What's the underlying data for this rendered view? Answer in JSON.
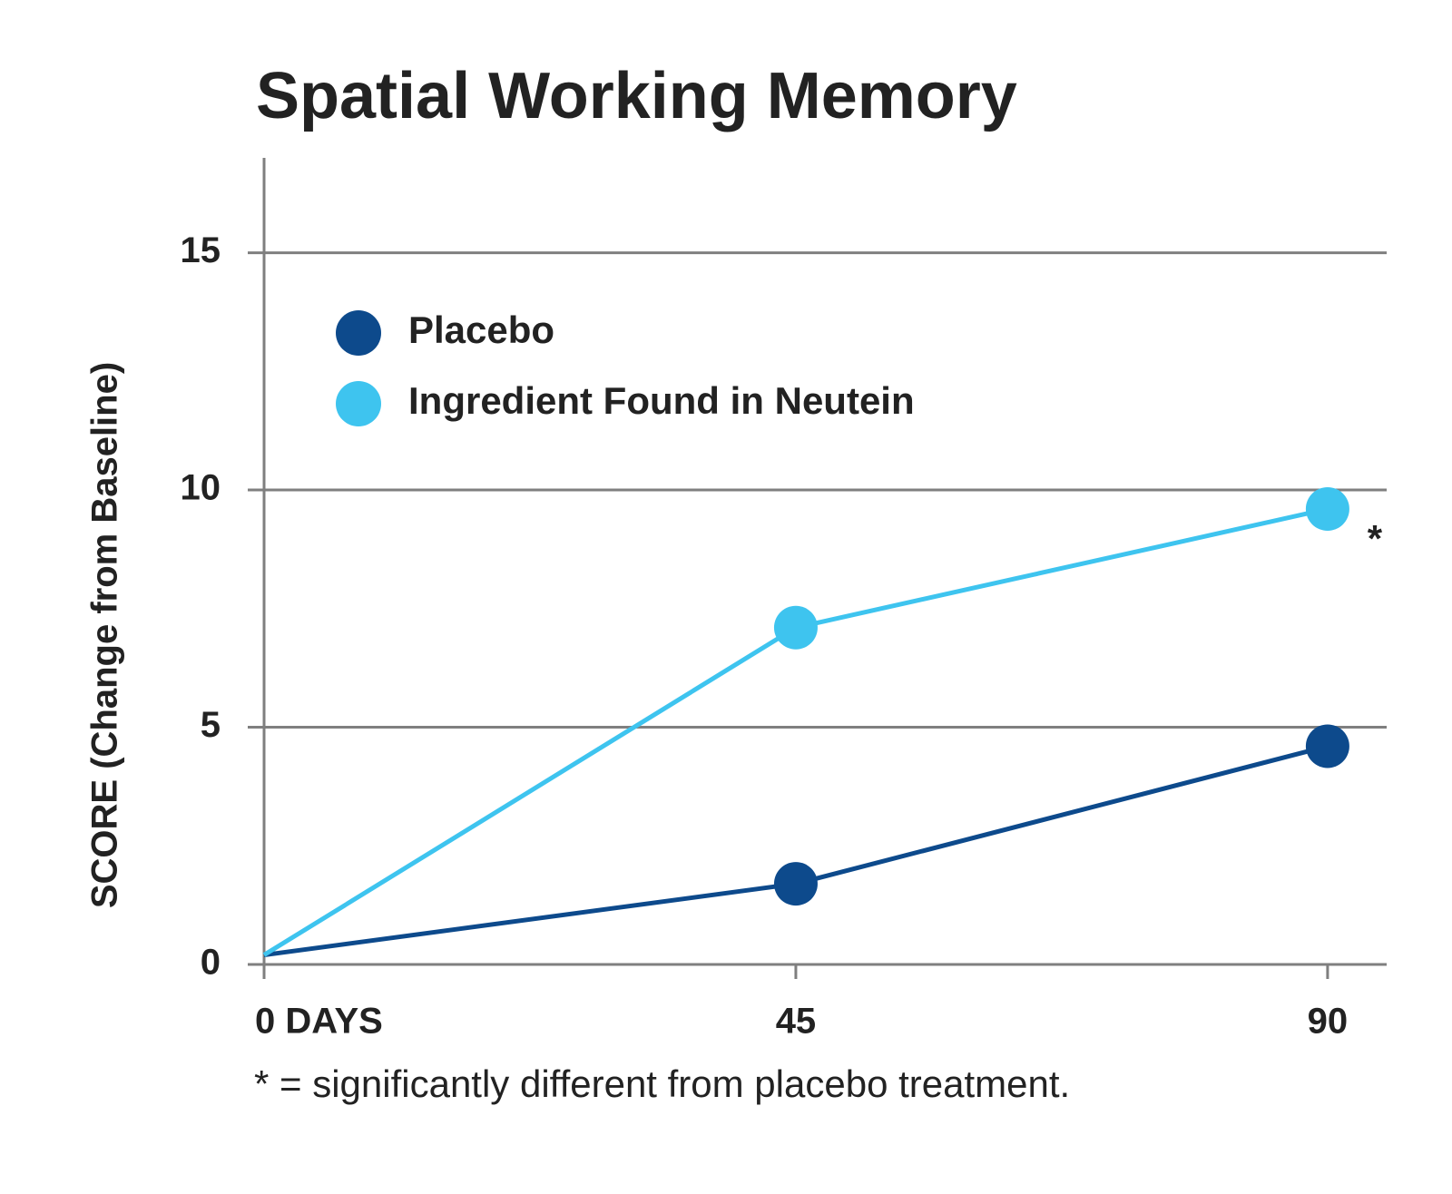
{
  "chart_data": {
    "type": "line",
    "title": "Spatial Working Memory",
    "y_label": "SCORE   (Change from Baseline)",
    "x": [
      0,
      45,
      90
    ],
    "xlim": [
      0,
      95
    ],
    "xticks": [
      {
        "value": 0,
        "label": "0 DAYS"
      },
      45,
      90
    ],
    "ylim": [
      0,
      17
    ],
    "yticks": [
      0,
      5,
      10,
      15
    ],
    "grid": true,
    "legend": "upper left",
    "series": [
      {
        "name": "Placebo",
        "color": "#0d4a8c",
        "values": [
          0.2,
          1.7,
          4.6
        ]
      },
      {
        "name": "Ingredient Found in Neutein",
        "color": "#3ec4ef",
        "values": [
          0.2,
          7.1,
          9.6
        ]
      }
    ],
    "annotation": "*",
    "footnote": "* = significantly different from placebo treatment."
  }
}
